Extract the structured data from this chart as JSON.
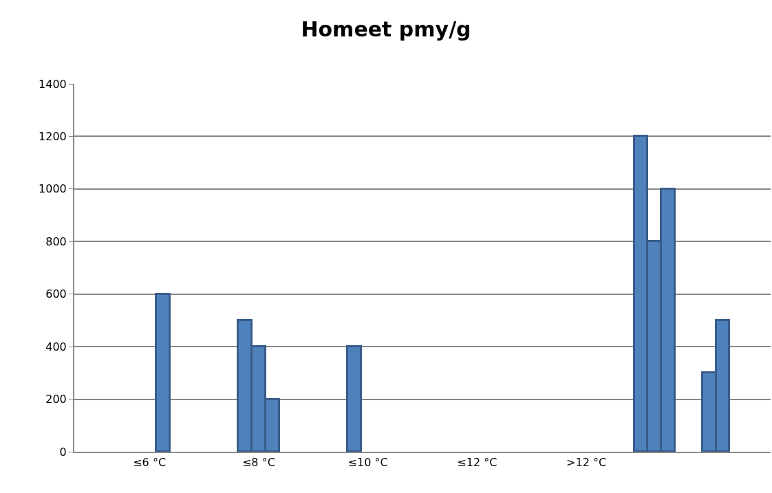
{
  "chart_data": {
    "type": "bar",
    "title": "Homeet pmy/g",
    "categories": [
      null,
      null,
      null,
      null,
      null,
      "≤6 °C",
      null,
      null,
      null,
      null,
      null,
      null,
      null,
      "≤8 °C",
      null,
      null,
      null,
      null,
      null,
      null,
      null,
      "≤10 °C",
      null,
      null,
      null,
      null,
      null,
      null,
      null,
      "≤12 °C",
      null,
      null,
      null,
      null,
      null,
      null,
      null,
      ">12 °C",
      null,
      null,
      null,
      null,
      null,
      null,
      null,
      null,
      null,
      null,
      null,
      null,
      null
    ],
    "values": [
      null,
      null,
      null,
      null,
      null,
      null,
      600,
      null,
      null,
      null,
      null,
      null,
      500,
      400,
      200,
      null,
      null,
      null,
      null,
      null,
      400,
      null,
      null,
      null,
      null,
      null,
      null,
      null,
      null,
      null,
      null,
      null,
      null,
      null,
      null,
      null,
      null,
      null,
      null,
      null,
      null,
      1200,
      800,
      1000,
      null,
      null,
      300,
      500,
      null,
      null,
      null
    ],
    "color": "#4f81bd",
    "ylim": [
      0,
      1400
    ],
    "yticks": [
      0,
      200,
      400,
      600,
      800,
      1000,
      1200,
      1400
    ],
    "grid": "y"
  }
}
